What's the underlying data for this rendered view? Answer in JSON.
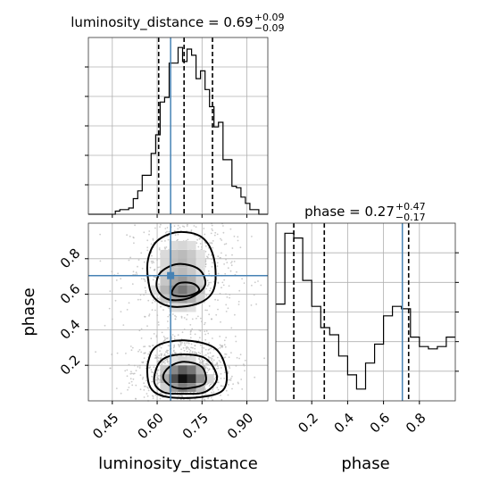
{
  "chart_data": {
    "type": "corner",
    "panels": [
      {
        "id": "lum-hist",
        "type": "histogram",
        "title_param": "luminosity_distance",
        "title_value": "0.69",
        "title_plus": "+0.09",
        "title_minus": "−0.09",
        "xlim": [
          0.37,
          0.97
        ],
        "bin_edges": [
          0.37,
          0.385,
          0.4,
          0.415,
          0.43,
          0.445,
          0.46,
          0.475,
          0.49,
          0.505,
          0.52,
          0.535,
          0.55,
          0.565,
          0.58,
          0.595,
          0.61,
          0.625,
          0.64,
          0.655,
          0.67,
          0.685,
          0.7,
          0.715,
          0.73,
          0.745,
          0.76,
          0.775,
          0.79,
          0.805,
          0.82,
          0.835,
          0.85,
          0.865,
          0.88,
          0.895,
          0.91,
          0.925,
          0.94,
          0.955,
          0.97
        ],
        "counts": [
          0,
          0,
          0,
          0,
          0,
          0,
          2,
          3,
          3,
          4,
          10,
          15,
          25,
          25,
          39,
          51,
          72,
          75,
          97,
          97,
          107,
          98,
          106,
          102,
          87,
          92,
          80,
          69,
          56,
          59,
          35,
          35,
          18,
          17,
          11,
          7,
          3,
          3,
          0,
          0
        ],
        "quantiles": [
          0.605,
          0.69,
          0.785
        ],
        "truth": 0.645
      },
      {
        "id": "joint",
        "type": "hist2d-contour",
        "xlabel": "luminosity_distance",
        "ylabel": "phase",
        "xlim": [
          0.37,
          0.97
        ],
        "ylim": [
          0.0,
          1.0
        ],
        "xticks": [
          "0.45",
          "0.60",
          "0.75",
          "0.90"
        ],
        "xtick_values": [
          0.45,
          0.6,
          0.75,
          0.9
        ],
        "yticks": [
          "0.2",
          "0.4",
          "0.6",
          "0.8"
        ],
        "ytick_values": [
          0.2,
          0.4,
          0.6,
          0.8
        ],
        "truth": [
          0.645,
          0.705
        ],
        "modes": [
          {
            "x": 0.69,
            "y": 0.13,
            "peak": 1.0,
            "sx": 0.045,
            "sy": 0.05
          },
          {
            "x": 0.68,
            "y": 0.62,
            "peak": 0.55,
            "sx": 0.05,
            "sy": 0.06
          },
          {
            "x": 0.68,
            "y": 0.8,
            "peak": 0.3,
            "sx": 0.05,
            "sy": 0.07
          }
        ],
        "contours": [
          [
            [
              0.57,
              0.11
            ],
            [
              0.59,
              0.05
            ],
            [
              0.64,
              0.02
            ],
            [
              0.74,
              0.02
            ],
            [
              0.82,
              0.06
            ],
            [
              0.83,
              0.18
            ],
            [
              0.79,
              0.3
            ],
            [
              0.69,
              0.34
            ],
            [
              0.6,
              0.31
            ],
            [
              0.57,
              0.22
            ]
          ],
          [
            [
              0.59,
              0.11
            ],
            [
              0.62,
              0.05
            ],
            [
              0.68,
              0.04
            ],
            [
              0.76,
              0.05
            ],
            [
              0.8,
              0.13
            ],
            [
              0.76,
              0.24
            ],
            [
              0.67,
              0.26
            ],
            [
              0.61,
              0.22
            ]
          ],
          [
            [
              0.62,
              0.13
            ],
            [
              0.65,
              0.08
            ],
            [
              0.7,
              0.07
            ],
            [
              0.76,
              0.1
            ],
            [
              0.75,
              0.19
            ],
            [
              0.69,
              0.22
            ],
            [
              0.64,
              0.19
            ]
          ],
          [
            [
              0.57,
              0.68
            ],
            [
              0.59,
              0.58
            ],
            [
              0.65,
              0.53
            ],
            [
              0.74,
              0.55
            ],
            [
              0.79,
              0.63
            ],
            [
              0.79,
              0.8
            ],
            [
              0.75,
              0.92
            ],
            [
              0.67,
              0.95
            ],
            [
              0.6,
              0.9
            ],
            [
              0.57,
              0.8
            ]
          ],
          [
            [
              0.6,
              0.63
            ],
            [
              0.64,
              0.57
            ],
            [
              0.71,
              0.58
            ],
            [
              0.76,
              0.65
            ],
            [
              0.74,
              0.74
            ],
            [
              0.67,
              0.77
            ],
            [
              0.61,
              0.72
            ]
          ],
          [
            [
              0.65,
              0.6
            ],
            [
              0.7,
              0.59
            ],
            [
              0.74,
              0.62
            ],
            [
              0.72,
              0.66
            ],
            [
              0.67,
              0.66
            ]
          ]
        ]
      },
      {
        "id": "phase-hist",
        "type": "histogram",
        "title_param": "phase",
        "title_value": "0.27",
        "title_plus": "+0.47",
        "title_minus": "−0.17",
        "xlim": [
          0.0,
          1.0
        ],
        "xlabel": "phase",
        "xticks": [
          "0.2",
          "0.4",
          "0.6",
          "0.8"
        ],
        "xtick_values": [
          0.2,
          0.4,
          0.6,
          0.8
        ],
        "bin_edges": [
          0.0,
          0.05,
          0.1,
          0.15,
          0.2,
          0.25,
          0.3,
          0.35,
          0.4,
          0.45,
          0.5,
          0.55,
          0.6,
          0.65,
          0.7,
          0.75,
          0.8,
          0.85,
          0.9,
          0.95,
          1.0
        ],
        "counts": [
          41,
          71,
          69,
          51,
          40,
          31,
          28,
          19,
          11,
          5,
          16,
          24,
          36,
          40,
          39,
          27,
          23,
          22,
          23,
          27
        ],
        "quantiles": [
          0.1,
          0.27,
          0.74
        ],
        "truth": 0.705
      }
    ],
    "colors": {
      "truth": "#4682b4",
      "line": "#000000",
      "grid": "#b0b0b0",
      "points": "#b5b5b5"
    },
    "grid": true
  }
}
